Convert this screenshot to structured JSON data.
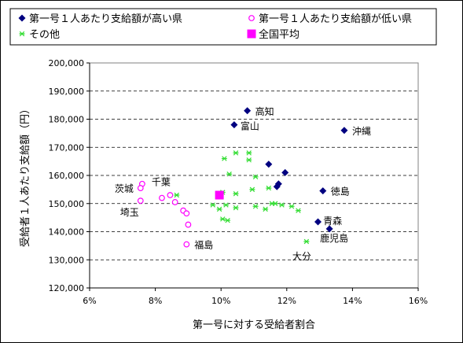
{
  "chart_data": {
    "type": "scatter",
    "xlabel": "第一号に対する受給者割合",
    "ylabel": "受給者１人あたり支給額（円）",
    "xlim": [
      0.06,
      0.16
    ],
    "ylim": [
      120000,
      200000
    ],
    "x_ticks": [
      "6%",
      "8%",
      "10%",
      "12%",
      "14%",
      "16%"
    ],
    "x_tick_values": [
      0.06,
      0.08,
      0.1,
      0.12,
      0.14,
      0.16
    ],
    "y_ticks": [
      "120,000",
      "130,000",
      "140,000",
      "150,000",
      "160,000",
      "170,000",
      "180,000",
      "190,000",
      "200,000"
    ],
    "y_tick_values": [
      120000,
      130000,
      140000,
      150000,
      160000,
      170000,
      180000,
      190000,
      200000
    ],
    "grid": "horizontal dashed",
    "legend_position": "top",
    "series": [
      {
        "name": "第一号１人あたり支給額が高い県",
        "marker": "diamond",
        "color": "#000080",
        "points": [
          [
            0.108,
            183000
          ],
          [
            0.104,
            178000
          ],
          [
            0.1375,
            176000
          ],
          [
            0.1145,
            164000
          ],
          [
            0.1195,
            161000
          ],
          [
            0.1175,
            157000
          ],
          [
            0.117,
            156000
          ],
          [
            0.131,
            154500
          ],
          [
            0.1295,
            143500
          ],
          [
            0.133,
            141000
          ]
        ]
      },
      {
        "name": "第一号１人あたり支給額が低い県",
        "marker": "circle",
        "color": "#ff00ff",
        "points": [
          [
            0.076,
            157000
          ],
          [
            0.0755,
            155500
          ],
          [
            0.0755,
            151000
          ],
          [
            0.082,
            152000
          ],
          [
            0.086,
            150500
          ],
          [
            0.0845,
            153000
          ],
          [
            0.0885,
            147500
          ],
          [
            0.0895,
            146500
          ],
          [
            0.09,
            142500
          ],
          [
            0.0895,
            135500
          ]
        ]
      },
      {
        "name": "その他",
        "marker": "asterisk",
        "color": "#33dd33",
        "points": [
          [
            0.1045,
            168000
          ],
          [
            0.1085,
            168000
          ],
          [
            0.1085,
            165500
          ],
          [
            0.101,
            166000
          ],
          [
            0.1025,
            160500
          ],
          [
            0.1105,
            159500
          ],
          [
            0.1145,
            155500
          ],
          [
            0.1095,
            155000
          ],
          [
            0.1005,
            154000
          ],
          [
            0.1045,
            153500
          ],
          [
            0.0995,
            153000
          ],
          [
            0.0865,
            153000
          ],
          [
            0.1155,
            150000
          ],
          [
            0.1165,
            150000
          ],
          [
            0.1185,
            149500
          ],
          [
            0.0975,
            149500
          ],
          [
            0.1015,
            149500
          ],
          [
            0.1105,
            149000
          ],
          [
            0.1215,
            149000
          ],
          [
            0.1135,
            148000
          ],
          [
            0.1235,
            147500
          ],
          [
            0.1005,
            144500
          ],
          [
            0.102,
            144000
          ],
          [
            0.126,
            136500
          ],
          [
            0.1045,
            148500
          ],
          [
            0.0995,
            148000
          ]
        ]
      },
      {
        "name": "全国平均",
        "marker": "square",
        "color": "#ff00ff",
        "points": [
          [
            0.0995,
            153000
          ]
        ]
      }
    ],
    "annotations": [
      {
        "text": "高知",
        "x": 0.108,
        "y": 183000,
        "dx": 10,
        "dy": 5
      },
      {
        "text": "富山",
        "x": 0.104,
        "y": 178000,
        "dx": 8,
        "dy": 6
      },
      {
        "text": "沖縄",
        "x": 0.1375,
        "y": 176000,
        "dx": 10,
        "dy": 5
      },
      {
        "text": "茨城",
        "x": 0.076,
        "y": 155500,
        "dx": -35,
        "dy": 5
      },
      {
        "text": "千葉",
        "x": 0.076,
        "y": 157000,
        "dx": 12,
        "dy": 2
      },
      {
        "text": "埼玉",
        "x": 0.0755,
        "y": 151000,
        "dx": -26,
        "dy": 19
      },
      {
        "text": "徳島",
        "x": 0.131,
        "y": 154500,
        "dx": 10,
        "dy": 5
      },
      {
        "text": "青森",
        "x": 0.133,
        "y": 141000,
        "dx": -8,
        "dy": -6
      },
      {
        "text": "鹿児島",
        "x": 0.133,
        "y": 141000,
        "dx": -12,
        "dy": 16
      },
      {
        "text": "大分",
        "x": 0.126,
        "y": 136500,
        "dx": -18,
        "dy": 23
      },
      {
        "text": "福島",
        "x": 0.0895,
        "y": 135500,
        "dx": 10,
        "dy": 5
      }
    ]
  }
}
